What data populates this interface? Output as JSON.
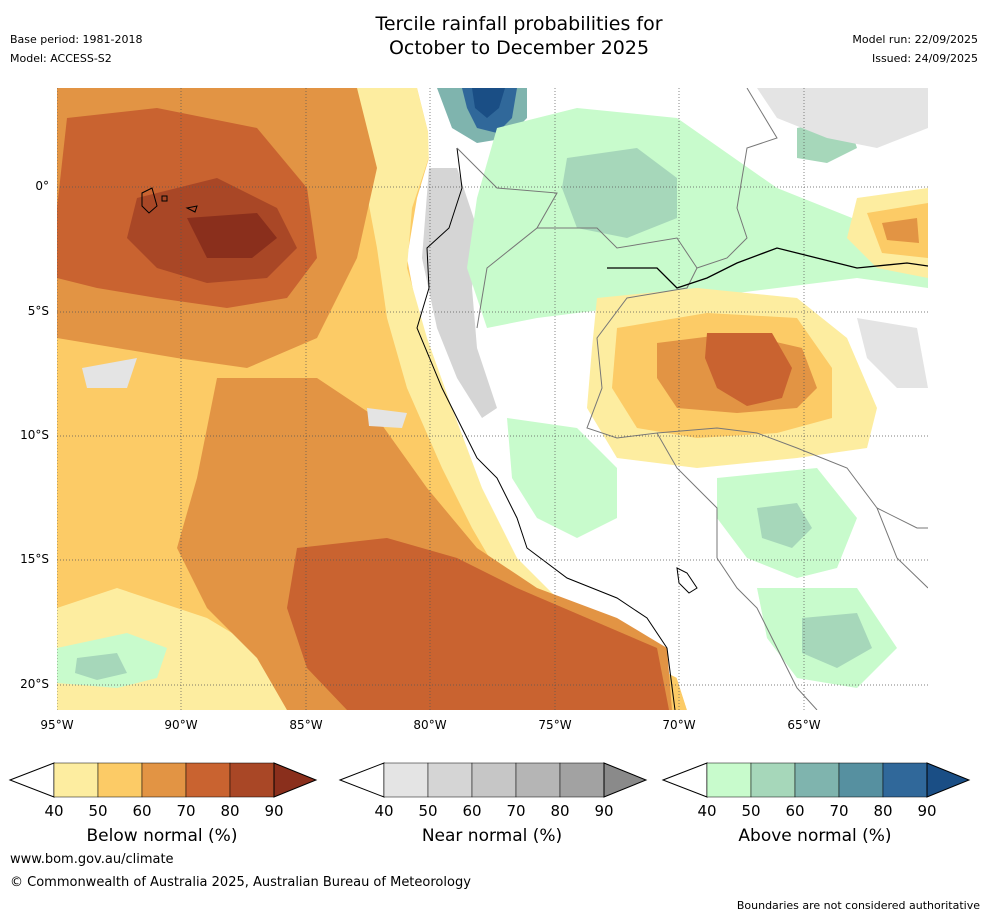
{
  "title": {
    "line1": "Tercile rainfall probabilities for",
    "line2": "October to December 2025"
  },
  "meta": {
    "base_period": "Base period: 1981-2018",
    "model": "Model: ACCESS-S2",
    "model_run": "Model run: 22/09/2025",
    "issued": "Issued: 24/09/2025"
  },
  "map": {
    "lat_labels": [
      "0°",
      "5°S",
      "10°S",
      "15°S",
      "20°S"
    ],
    "lon_labels": [
      "95°W",
      "90°W",
      "85°W",
      "80°W",
      "75°W",
      "70°W",
      "65°W"
    ],
    "lat_range": [
      -21,
      4
    ],
    "lon_range": [
      -95,
      -60
    ]
  },
  "legends": [
    {
      "name": "below",
      "title": "Below normal (%)",
      "ticks": [
        "40",
        "50",
        "60",
        "70",
        "80",
        "90"
      ],
      "colors": [
        "#fdeda0",
        "#fccb66",
        "#e29444",
        "#c96330",
        "#a94726",
        "#8a2f1c"
      ]
    },
    {
      "name": "near",
      "title": "Near normal (%)",
      "ticks": [
        "40",
        "50",
        "60",
        "70",
        "80",
        "90"
      ],
      "colors": [
        "#e4e4e4",
        "#d5d5d5",
        "#c6c6c6",
        "#b5b5b5",
        "#a2a2a2",
        "#8a8a8a"
      ]
    },
    {
      "name": "above",
      "title": "Above normal (%)",
      "ticks": [
        "40",
        "50",
        "60",
        "70",
        "80",
        "90"
      ],
      "colors": [
        "#c8fbcc",
        "#a6d7ba",
        "#7fb4ae",
        "#5690a0",
        "#30689a",
        "#1a4e85"
      ]
    }
  ],
  "footer": {
    "url": "www.bom.gov.au/climate",
    "copyright": "© Commonwealth of Australia 2025, Australian Bureau of Meteorology",
    "disclaimer": "Boundaries are not considered authoritative"
  }
}
